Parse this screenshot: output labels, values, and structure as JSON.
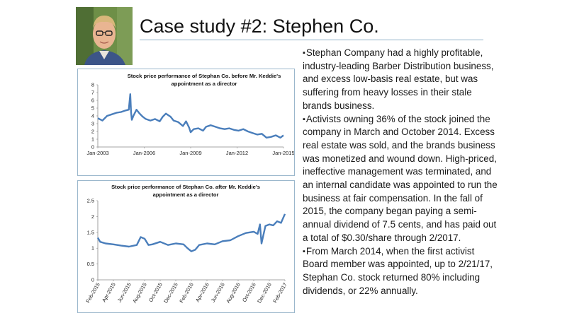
{
  "slide": {
    "title": "Case study #2: Stephen Co.",
    "bullets": [
      "Stephan Company had a highly profitable, industry-leading Barber Distribution business, and excess low-basis real estate, but was suffering from heavy losses in their stale brands business.",
      "Activists owning 36% of the stock joined the company in March and October 2014. Excess real estate was sold, and the brands business was monetized and wound down. High-priced, ineffective management was terminated, and an internal candidate was appointed to run the business at fair compensation. In the fall of 2015, the company began paying a semi-annual dividend of 7.5 cents, and has paid out a total of $0.30/share through 2/2017.",
      "From March 2014, when the first activist Board member was appointed, up to 2/21/17, Stephan Co. stock returned 80% including dividends, or 22% annually."
    ],
    "photo_icon": "portrait-photo"
  },
  "chart_data": [
    {
      "type": "line",
      "title": "Stock price performance of Stephan Co. before Mr. Keddie's appointment as a director",
      "x_tick_labels": [
        "Jan-2003",
        "Jan-2006",
        "Jan-2009",
        "Jan-2012",
        "Jan-2015"
      ],
      "y_tick_labels": [
        "0",
        "1",
        "2",
        "3",
        "4",
        "5",
        "6",
        "7",
        "8"
      ],
      "ylim": [
        0,
        8
      ],
      "xlim": [
        2003.0,
        2015.0
      ],
      "grid": false,
      "series": [
        {
          "color": "#4a7ebb",
          "x": [
            2003.0,
            2003.3,
            2003.6,
            2003.9,
            2004.2,
            2004.5,
            2004.8,
            2005.0,
            2005.1,
            2005.15,
            2005.2,
            2005.3,
            2005.5,
            2005.7,
            2005.9,
            2006.1,
            2006.4,
            2006.7,
            2007.0,
            2007.2,
            2007.4,
            2007.7,
            2007.9,
            2008.2,
            2008.5,
            2008.7,
            2008.9,
            2009.0,
            2009.2,
            2009.5,
            2009.8,
            2010.0,
            2010.3,
            2010.6,
            2010.9,
            2011.2,
            2011.5,
            2011.8,
            2012.1,
            2012.4,
            2012.7,
            2013.0,
            2013.3,
            2013.6,
            2013.9,
            2014.2,
            2014.5,
            2014.8,
            2015.0
          ],
          "y": [
            3.7,
            3.4,
            4.0,
            4.2,
            4.4,
            4.5,
            4.7,
            4.8,
            6.8,
            4.5,
            3.5,
            4.0,
            4.8,
            4.3,
            3.9,
            3.6,
            3.4,
            3.6,
            3.3,
            3.9,
            4.3,
            3.9,
            3.4,
            3.2,
            2.7,
            3.3,
            2.5,
            1.9,
            2.3,
            2.4,
            2.1,
            2.6,
            2.8,
            2.6,
            2.4,
            2.3,
            2.4,
            2.2,
            2.1,
            2.3,
            2.0,
            1.8,
            1.6,
            1.7,
            1.2,
            1.3,
            1.5,
            1.2,
            1.5
          ]
        }
      ]
    },
    {
      "type": "line",
      "title": "Stock price performance of Stephan Co. after Mr. Keddie's appointment as a director",
      "x_tick_labels": [
        "Feb-2015",
        "Apr-2015",
        "Jun-2015",
        "Aug-2015",
        "Oct-2015",
        "Dec-2015",
        "Feb-2016",
        "Apr-2016",
        "Jun-2016",
        "Aug-2016",
        "Oct-2016",
        "Dec-2016",
        "Feb-2017"
      ],
      "y_tick_labels": [
        "0",
        "0.5",
        "1",
        "1.5",
        "2",
        "2.5"
      ],
      "ylim": [
        0,
        2.5
      ],
      "xlim": [
        0,
        24
      ],
      "grid": false,
      "series": [
        {
          "color": "#4a7ebb",
          "x": [
            0,
            0.3,
            1,
            2,
            3,
            4,
            5,
            5.5,
            6,
            6.5,
            7,
            8,
            9,
            10,
            11,
            11.5,
            12,
            12.5,
            13,
            14,
            15,
            16,
            17,
            18,
            19,
            20,
            20.5,
            20.8,
            21,
            21.5,
            22,
            22.5,
            23,
            23.5,
            24
          ],
          "y": [
            1.33,
            1.2,
            1.15,
            1.12,
            1.08,
            1.05,
            1.1,
            1.35,
            1.3,
            1.1,
            1.12,
            1.2,
            1.1,
            1.15,
            1.12,
            1.0,
            0.9,
            0.95,
            1.1,
            1.15,
            1.12,
            1.22,
            1.25,
            1.38,
            1.48,
            1.52,
            1.45,
            1.75,
            1.15,
            1.7,
            1.75,
            1.72,
            1.85,
            1.8,
            2.08
          ]
        }
      ]
    }
  ]
}
